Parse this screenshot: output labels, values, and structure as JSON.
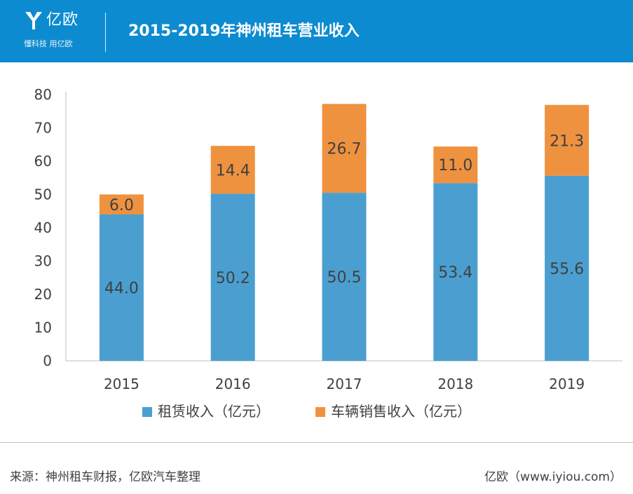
{
  "header": {
    "logo_name": "亿欧",
    "logo_slogan": "懂科技 用亿欧",
    "title": "2015-2019年神州租车营业收入"
  },
  "colors": {
    "header_bg": "#0d8bd0",
    "series_rental": "#4a9fd0",
    "series_sales": "#ef923f"
  },
  "chart_data": {
    "type": "bar",
    "stacked": true,
    "categories": [
      "2015",
      "2016",
      "2017",
      "2018",
      "2019"
    ],
    "series": [
      {
        "name": "租赁收入（亿元）",
        "values": [
          44.0,
          50.2,
          50.5,
          53.4,
          55.6
        ],
        "labels": [
          "44.0",
          "50.2",
          "50.5",
          "53.4",
          "55.6"
        ],
        "color": "#4a9fd0"
      },
      {
        "name": "车辆销售收入（亿元）",
        "values": [
          6.0,
          14.4,
          26.7,
          11.0,
          21.3
        ],
        "labels": [
          "6.0",
          "14.4",
          "26.7",
          "11.0",
          "21.3"
        ],
        "color": "#ef923f"
      }
    ],
    "ylim": [
      0,
      80
    ],
    "yticks": [
      "0",
      "10",
      "20",
      "30",
      "40",
      "50",
      "60",
      "70",
      "80"
    ],
    "grid": false,
    "legend_position": "bottom"
  },
  "footer": {
    "source": "来源：神州租车财报，亿欧汽车整理",
    "brand_url": "亿欧（www.iyiou.com）"
  }
}
